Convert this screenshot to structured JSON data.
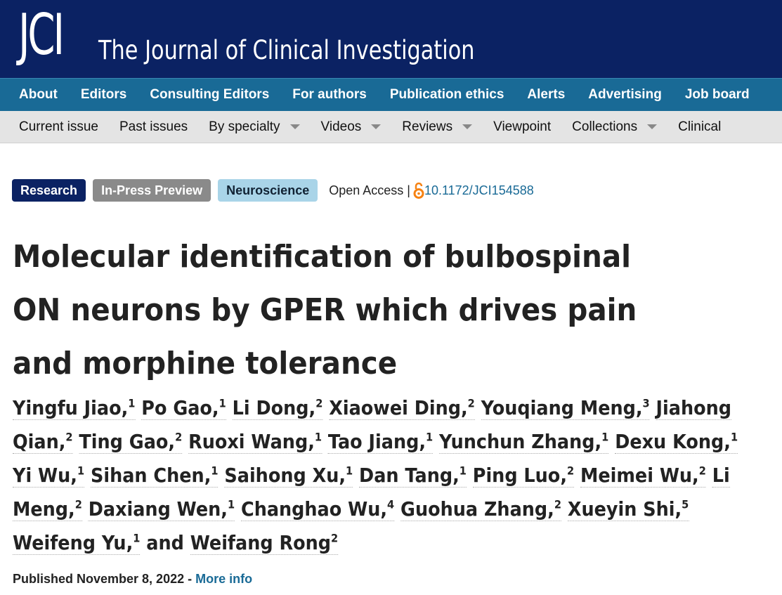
{
  "masthead": {
    "logo_text": "JCI",
    "journal_name": "The Journal of Clinical Investigation"
  },
  "nav_primary": [
    "About",
    "Editors",
    "Consulting Editors",
    "For authors",
    "Publication ethics",
    "Alerts",
    "Advertising",
    "Job board"
  ],
  "nav_secondary": [
    {
      "label": "Current issue",
      "dropdown": false
    },
    {
      "label": "Past issues",
      "dropdown": false
    },
    {
      "label": "By specialty",
      "dropdown": true
    },
    {
      "label": "Videos",
      "dropdown": true
    },
    {
      "label": "Reviews",
      "dropdown": true
    },
    {
      "label": "Viewpoint",
      "dropdown": false
    },
    {
      "label": "Collections",
      "dropdown": true
    },
    {
      "label": "Clinical",
      "dropdown": false
    }
  ],
  "tags": {
    "research": "Research",
    "in_press": "In-Press Preview",
    "specialty": "Neuroscience"
  },
  "open_access": "Open Access |",
  "doi": "10.1172/JCI154588",
  "title": "Molecular identification of bulbospinal ON neurons by GPER which drives pain and morphine tolerance",
  "authors": [
    {
      "name": "Yingfu Jiao",
      "aff": "1"
    },
    {
      "name": "Po Gao",
      "aff": "1"
    },
    {
      "name": "Li Dong",
      "aff": "2"
    },
    {
      "name": "Xiaowei Ding",
      "aff": "2"
    },
    {
      "name": "Youqiang Meng",
      "aff": "3"
    },
    {
      "name": "Jiahong Qian",
      "aff": "2"
    },
    {
      "name": "Ting Gao",
      "aff": "2"
    },
    {
      "name": "Ruoxi Wang",
      "aff": "1"
    },
    {
      "name": "Tao Jiang",
      "aff": "1"
    },
    {
      "name": "Yunchun Zhang",
      "aff": "1"
    },
    {
      "name": "Dexu Kong",
      "aff": "1"
    },
    {
      "name": "Yi Wu",
      "aff": "1"
    },
    {
      "name": "Sihan Chen",
      "aff": "1"
    },
    {
      "name": "Saihong Xu",
      "aff": "1"
    },
    {
      "name": "Dan Tang",
      "aff": "1"
    },
    {
      "name": "Ping Luo",
      "aff": "2"
    },
    {
      "name": "Meimei Wu",
      "aff": "2"
    },
    {
      "name": "Li Meng",
      "aff": "2"
    },
    {
      "name": "Daxiang Wen",
      "aff": "1"
    },
    {
      "name": "Changhao Wu",
      "aff": "4"
    },
    {
      "name": "Guohua Zhang",
      "aff": "2"
    },
    {
      "name": "Xueyin Shi",
      "aff": "5"
    },
    {
      "name": "Weifeng Yu",
      "aff": "1"
    },
    {
      "name": "Weifang Rong",
      "aff": "2"
    }
  ],
  "authors_and": "and",
  "published_label": "Published November 8, 2022 -",
  "more_info": "More info",
  "colors": {
    "masthead": "#0b2263",
    "nav_primary": "#196a96",
    "nav_secondary": "#e4e4e4",
    "research_tag": "#0b2263",
    "inpress_tag": "#8a8a8a",
    "neuro_tag": "#a9d4e8",
    "link": "#196a96",
    "oa_icon": "#f68212"
  }
}
